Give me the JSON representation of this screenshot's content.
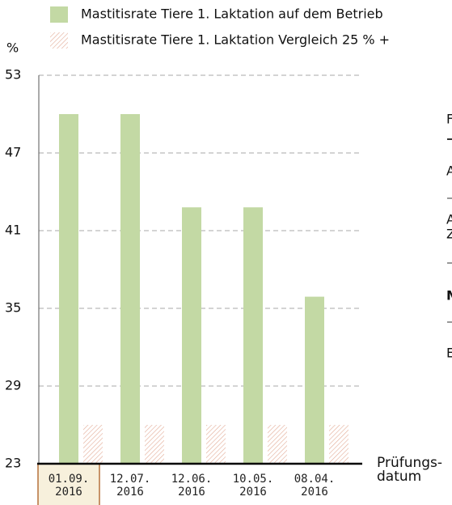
{
  "chart_data": {
    "type": "bar",
    "y_axis_label": "%",
    "x_axis_label": "Prüfungs-\ndatum",
    "categories": [
      "01.09.\n2016",
      "12.07.\n2016",
      "12.06.\n2016",
      "10.05.\n2016",
      "08.04.\n2016"
    ],
    "highlighted_category": 0,
    "series": [
      {
        "name": "Mastitisrate Tiere 1. Laktation auf dem Betrieb",
        "color": "#c3d9a4",
        "values": [
          50,
          50,
          42.8,
          42.8,
          35.9
        ]
      },
      {
        "name": "Mastitisrate Tiere 1. Laktation Vergleich 25 % +",
        "color": "#e3ab96",
        "pattern": "hatch",
        "values": [
          26,
          26,
          26,
          26,
          26
        ]
      }
    ],
    "ylim": [
      23,
      53
    ],
    "yticks": [
      23,
      29,
      35,
      41,
      47,
      53
    ],
    "grid": true
  },
  "side_panel": [
    "F",
    "A",
    "A",
    "Z",
    "M",
    "E"
  ]
}
